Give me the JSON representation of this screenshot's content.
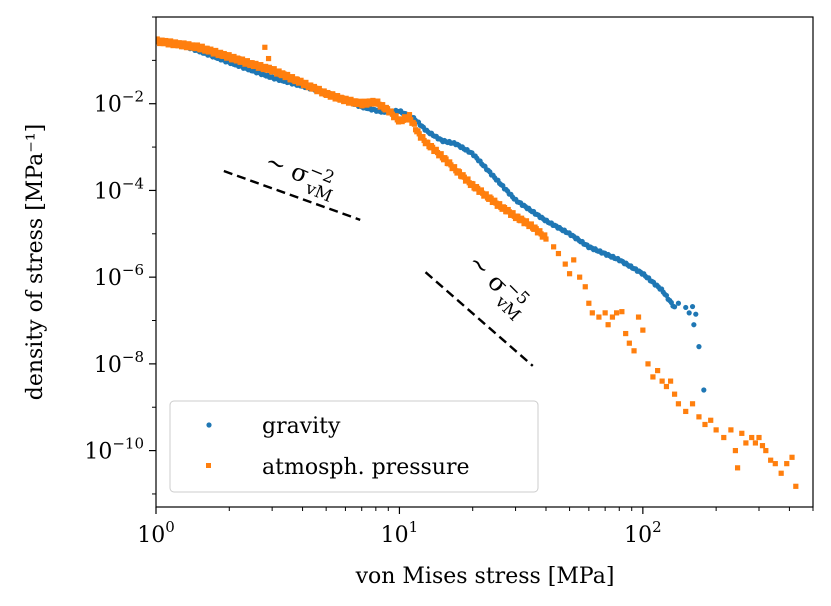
{
  "chart_data": {
    "type": "scatter",
    "xscale": "log",
    "yscale": "log",
    "xlim": [
      1,
      500
    ],
    "ylim": [
      5e-12,
      1
    ],
    "xlabel": "von Mises stress [MPa]",
    "ylabel": "density of stress [MPa⁻¹]",
    "x_ticks": [
      {
        "value": 1,
        "base": "10",
        "exp": "0"
      },
      {
        "value": 10,
        "base": "10",
        "exp": "1"
      },
      {
        "value": 100,
        "base": "10",
        "exp": "2"
      }
    ],
    "y_ticks": [
      {
        "value": 0.01,
        "base": "10",
        "exp": "−2"
      },
      {
        "value": 0.0001,
        "base": "10",
        "exp": "−4"
      },
      {
        "value": 1e-06,
        "base": "10",
        "exp": "−6"
      },
      {
        "value": 1e-08,
        "base": "10",
        "exp": "−8"
      },
      {
        "value": 1e-10,
        "base": "10",
        "exp": "−10"
      }
    ],
    "series": [
      {
        "name": "gravity",
        "color": "#1f77b4",
        "marker": "circle",
        "anchors": [
          [
            1.0,
            0.3
          ],
          [
            1.4,
            0.19
          ],
          [
            2.0,
            0.09
          ],
          [
            3.0,
            0.04
          ],
          [
            5.0,
            0.018
          ],
          [
            7.0,
            0.0085
          ],
          [
            8.5,
            0.0065
          ],
          [
            10.0,
            0.0068
          ],
          [
            11.5,
            0.0045
          ],
          [
            13.0,
            0.0023
          ],
          [
            15.0,
            0.0014
          ],
          [
            17.0,
            0.0012
          ],
          [
            20.0,
            0.0007
          ],
          [
            25.0,
            0.00018
          ],
          [
            30.0,
            6e-05
          ],
          [
            40.0,
            2e-05
          ],
          [
            50.0,
            1e-05
          ],
          [
            60.0,
            5e-06
          ],
          [
            80.0,
            2.5e-06
          ],
          [
            100.0,
            1.2e-06
          ],
          [
            120.0,
            5e-07
          ],
          [
            135.0,
            2e-07
          ]
        ],
        "tail": [
          [
            140,
            2.5e-07
          ],
          [
            150,
            2e-07
          ],
          [
            155,
            1.5e-07
          ],
          [
            160,
            2.1e-07
          ],
          [
            162,
            8e-08
          ],
          [
            165,
            1.4e-07
          ],
          [
            170,
            2.5e-08
          ],
          [
            178,
            2.5e-09
          ]
        ]
      },
      {
        "name": "atmosph. pressure",
        "color": "#ff7f0e",
        "marker": "square",
        "anchors": [
          [
            1.0,
            0.28
          ],
          [
            1.5,
            0.2
          ],
          [
            2.0,
            0.12
          ],
          [
            2.5,
            0.08
          ],
          [
            3.0,
            0.06
          ],
          [
            4.0,
            0.03
          ],
          [
            5.0,
            0.017
          ],
          [
            6.0,
            0.012
          ],
          [
            7.0,
            0.01
          ],
          [
            8.0,
            0.011
          ],
          [
            9.0,
            0.007
          ],
          [
            10.0,
            0.004
          ],
          [
            11.0,
            0.005
          ],
          [
            12.0,
            0.002
          ],
          [
            13.0,
            0.0012
          ],
          [
            15.0,
            0.0006
          ],
          [
            17.0,
            0.0003
          ],
          [
            20.0,
            0.00013
          ],
          [
            25.0,
            5e-05
          ],
          [
            30.0,
            2.5e-05
          ],
          [
            35.0,
            1.5e-05
          ],
          [
            40.0,
            8e-06
          ]
        ],
        "tail": [
          [
            2.8,
            0.2
          ],
          [
            2.9,
            0.11
          ],
          [
            43,
            5e-06
          ],
          [
            45,
            3.5e-06
          ],
          [
            48,
            2e-06
          ],
          [
            50,
            1.2e-06
          ],
          [
            52,
            2.5e-06
          ],
          [
            55,
            1e-06
          ],
          [
            58,
            6e-07
          ],
          [
            60,
            2.5e-07
          ],
          [
            62,
            1.5e-07
          ],
          [
            66,
            1.2e-07
          ],
          [
            70,
            1.5e-07
          ],
          [
            72,
            8e-08
          ],
          [
            75,
            1.2e-07
          ],
          [
            78,
            1.5e-07
          ],
          [
            82,
            1.6e-07
          ],
          [
            85,
            5e-08
          ],
          [
            88,
            3e-08
          ],
          [
            92,
            2e-08
          ],
          [
            96,
            1.2e-07
          ],
          [
            100,
            6e-08
          ],
          [
            105,
            1e-08
          ],
          [
            110,
            5e-09
          ],
          [
            115,
            7e-09
          ],
          [
            120,
            4e-09
          ],
          [
            125,
            3e-09
          ],
          [
            130,
            4e-09
          ],
          [
            135,
            2e-09
          ],
          [
            140,
            1.2e-09
          ],
          [
            150,
            8e-10
          ],
          [
            160,
            1.2e-09
          ],
          [
            170,
            6e-10
          ],
          [
            180,
            4e-10
          ],
          [
            190,
            5e-10
          ],
          [
            200,
            3e-10
          ],
          [
            215,
            2e-10
          ],
          [
            230,
            3e-10
          ],
          [
            240,
            1e-10
          ],
          [
            245,
            4e-11
          ],
          [
            255,
            2.5e-10
          ],
          [
            265,
            1.5e-10
          ],
          [
            280,
            2e-10
          ],
          [
            290,
            1.5e-10
          ],
          [
            300,
            2e-10
          ],
          [
            310,
            1.3e-10
          ],
          [
            320,
            1e-10
          ],
          [
            335,
            6e-11
          ],
          [
            350,
            5e-11
          ],
          [
            370,
            3e-11
          ],
          [
            390,
            5e-11
          ],
          [
            410,
            7e-11
          ],
          [
            425,
            1.5e-11
          ]
        ]
      }
    ],
    "reference_lines": [
      {
        "label_main": "~ σ",
        "label_sup": "−2",
        "label_sub": "vM",
        "points": [
          [
            1.9,
            0.00028
          ],
          [
            6.9,
            2.1e-05
          ]
        ]
      },
      {
        "label_main": "~ σ",
        "label_sup": "−5",
        "label_sub": "vM",
        "points": [
          [
            12.8,
            1.3e-06
          ],
          [
            35.3,
            9e-09
          ]
        ]
      }
    ],
    "legend": {
      "location": "lower-left",
      "entries": [
        "gravity",
        "atmosph. pressure"
      ]
    }
  }
}
